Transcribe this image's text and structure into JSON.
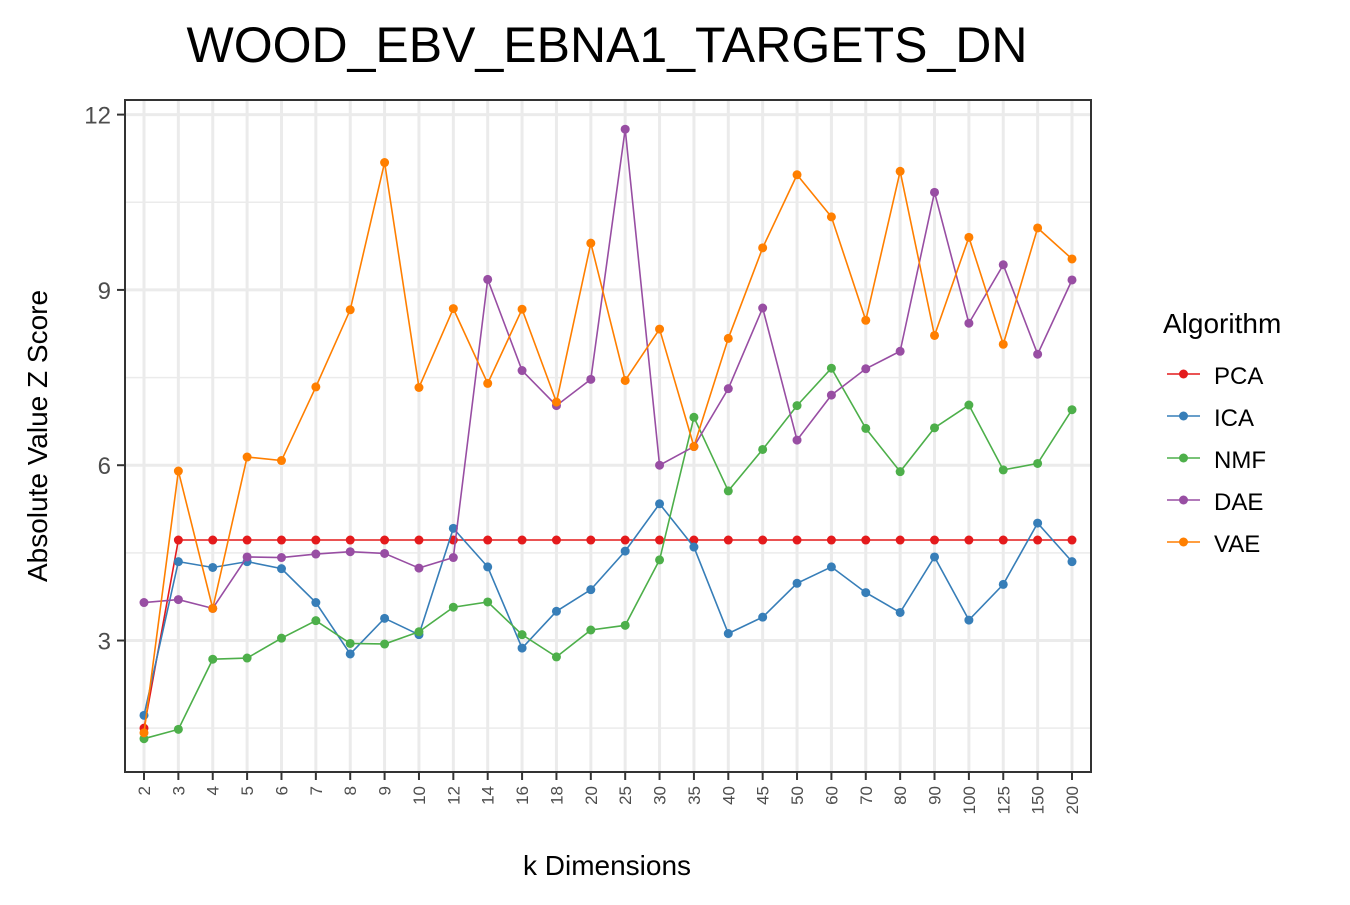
{
  "chart_data": {
    "type": "line",
    "title": "WOOD_EBV_EBNA1_TARGETS_DN",
    "xlabel": "k Dimensions",
    "ylabel": "Absolute Value Z Score",
    "categories": [
      "2",
      "3",
      "4",
      "5",
      "6",
      "7",
      "8",
      "9",
      "10",
      "12",
      "14",
      "16",
      "18",
      "20",
      "25",
      "30",
      "35",
      "40",
      "45",
      "50",
      "60",
      "70",
      "80",
      "90",
      "100",
      "125",
      "150",
      "200"
    ],
    "ylim": [
      0.75,
      12.25
    ],
    "yticks": [
      3,
      6,
      9,
      12
    ],
    "grid": true,
    "legend": {
      "title": "Algorithm",
      "position": "right"
    },
    "series": [
      {
        "name": "PCA",
        "color": "#E41A1C",
        "values": [
          1.5,
          4.72,
          4.72,
          4.72,
          4.72,
          4.72,
          4.72,
          4.72,
          4.72,
          4.72,
          4.72,
          4.72,
          4.72,
          4.72,
          4.72,
          4.72,
          4.72,
          4.72,
          4.72,
          4.72,
          4.72,
          4.72,
          4.72,
          4.72,
          4.72,
          4.72,
          4.72,
          4.72
        ]
      },
      {
        "name": "ICA",
        "color": "#377EB8",
        "values": [
          1.72,
          4.35,
          4.25,
          4.35,
          4.23,
          3.65,
          2.77,
          3.38,
          3.1,
          4.92,
          4.26,
          2.87,
          3.5,
          3.87,
          4.53,
          5.34,
          4.6,
          3.12,
          3.4,
          3.98,
          4.26,
          3.82,
          3.48,
          4.43,
          3.35,
          3.96,
          5.01,
          4.35
        ]
      },
      {
        "name": "NMF",
        "color": "#4DAF4A",
        "values": [
          1.32,
          1.48,
          2.68,
          2.7,
          3.04,
          3.34,
          2.95,
          2.94,
          3.15,
          3.57,
          3.66,
          3.1,
          2.72,
          3.18,
          3.26,
          4.38,
          6.82,
          5.56,
          6.27,
          7.02,
          7.66,
          6.63,
          5.89,
          6.64,
          7.03,
          5.92,
          6.03,
          6.95
        ]
      },
      {
        "name": "DAE",
        "color": "#984EA3",
        "values": [
          3.65,
          3.7,
          3.55,
          4.43,
          4.42,
          4.48,
          4.52,
          4.49,
          4.24,
          4.42,
          9.18,
          7.62,
          7.02,
          7.47,
          11.75,
          6.0,
          6.32,
          7.31,
          8.69,
          6.43,
          7.2,
          7.65,
          7.95,
          10.67,
          8.43,
          9.43,
          7.9,
          9.17
        ]
      },
      {
        "name": "VAE",
        "color": "#FF7F00",
        "values": [
          1.42,
          5.9,
          3.55,
          6.14,
          6.08,
          7.34,
          8.66,
          11.18,
          7.33,
          8.68,
          7.4,
          8.67,
          7.08,
          9.8,
          7.45,
          8.33,
          6.32,
          8.17,
          9.72,
          10.97,
          10.25,
          8.48,
          11.03,
          8.22,
          9.9,
          8.07,
          10.06,
          9.53
        ]
      }
    ]
  }
}
